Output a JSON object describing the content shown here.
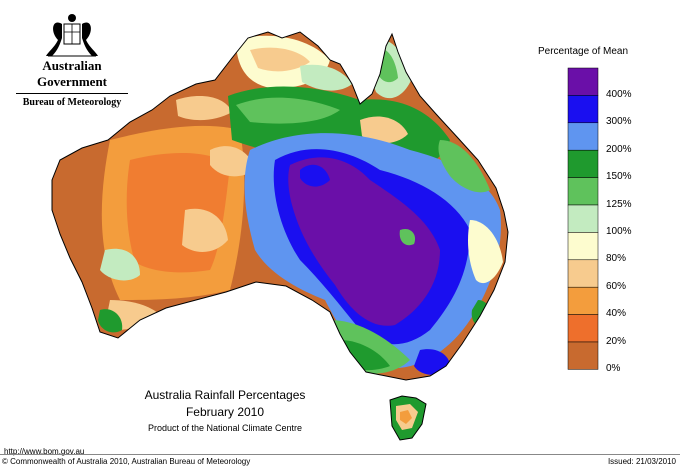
{
  "agency": {
    "government": "Australian Government",
    "bureau": "Bureau of Meteorology"
  },
  "map": {
    "title": "Australia Rainfall Percentages",
    "period": "February 2010",
    "product": "Product of the National Climate Centre"
  },
  "legend": {
    "title": "Percentage of Mean",
    "classes": [
      {
        "label": "400%",
        "color": "#6a0fa8"
      },
      {
        "label": "300%",
        "color": "#1a0ff0"
      },
      {
        "label": "200%",
        "color": "#5f95f0"
      },
      {
        "label": "150%",
        "color": "#1f9a2e"
      },
      {
        "label": "125%",
        "color": "#5fc25c"
      },
      {
        "label": "100%",
        "color": "#c3ebc0"
      },
      {
        "label": "80%",
        "color": "#fdfccf"
      },
      {
        "label": "60%",
        "color": "#f7cb8e"
      },
      {
        "label": "40%",
        "color": "#f39d3d"
      },
      {
        "label": "20%",
        "color": "#ee6f2c"
      },
      {
        "label": "0%",
        "color": "#c86a2f"
      }
    ]
  },
  "footer": {
    "url": "http://www.bom.gov.au",
    "copyright": "© Commonwealth of Australia 2010, Australian Bureau of Meteorology",
    "issued": "Issued: 21/03/2010"
  }
}
